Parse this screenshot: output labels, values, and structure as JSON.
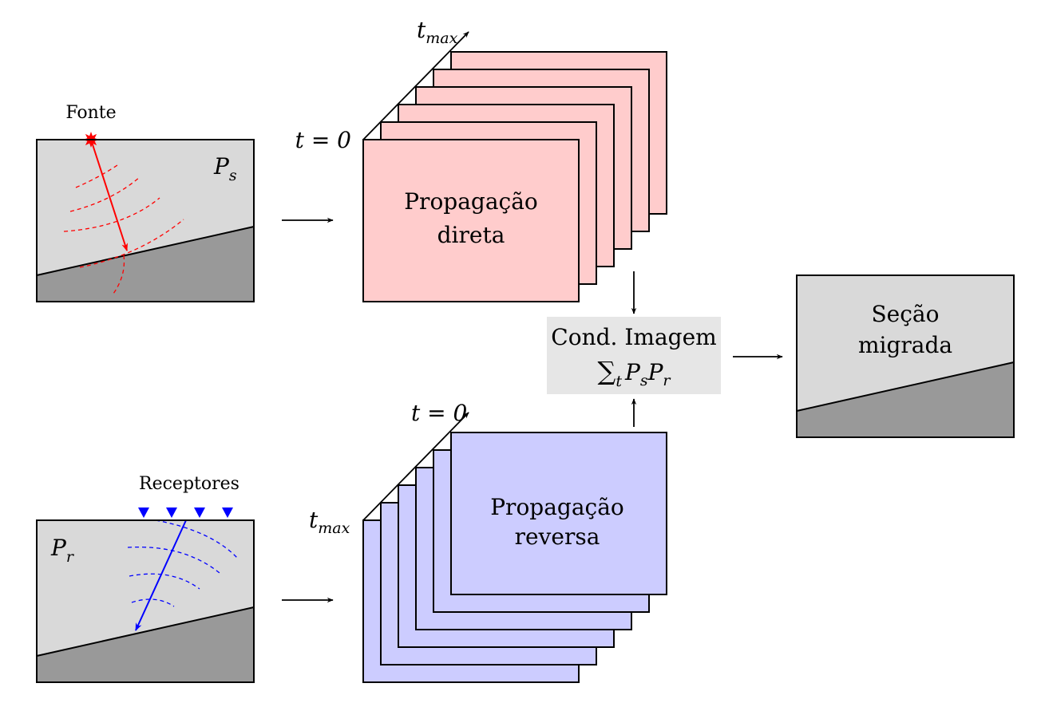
{
  "colors": {
    "layer_light": "#d9d9d9",
    "layer_dark": "#999999",
    "forward_fill": "#ffcccc",
    "reverse_fill": "#ccccff",
    "source_color": "#ff0000",
    "receiver_color": "#0000ff",
    "imaging_box_fill": "#e6e6e6",
    "line": "#000000"
  },
  "icons": {
    "source": "star-burst-icon",
    "receiver": "triangle-down-icon"
  },
  "source_model": {
    "source_label": "Fonte",
    "field_label": "P",
    "field_subscript": "s"
  },
  "receiver_model": {
    "receivers_label": "Receptores",
    "receiver_count": 4,
    "field_label": "P",
    "field_subscript": "r"
  },
  "forward_stack": {
    "line1": "Propagação",
    "line2": "direta",
    "frame_count": 6,
    "start_label": "t = 0",
    "end_label_base": "t",
    "end_label_sub": "max"
  },
  "reverse_stack": {
    "line1": "Propagação",
    "line2": "reversa",
    "frame_count": 6,
    "start_label_base": "t",
    "start_label_sub": "max",
    "end_label": "t = 0"
  },
  "imaging_condition": {
    "title": "Cond. Imagem",
    "sum_symbol": "∑",
    "sum_subscript": "t",
    "p1": "P",
    "p1_sub": "s",
    "p2": "P",
    "p2_sub": "r"
  },
  "output_section": {
    "line1": "Seção",
    "line2": "migrada"
  }
}
